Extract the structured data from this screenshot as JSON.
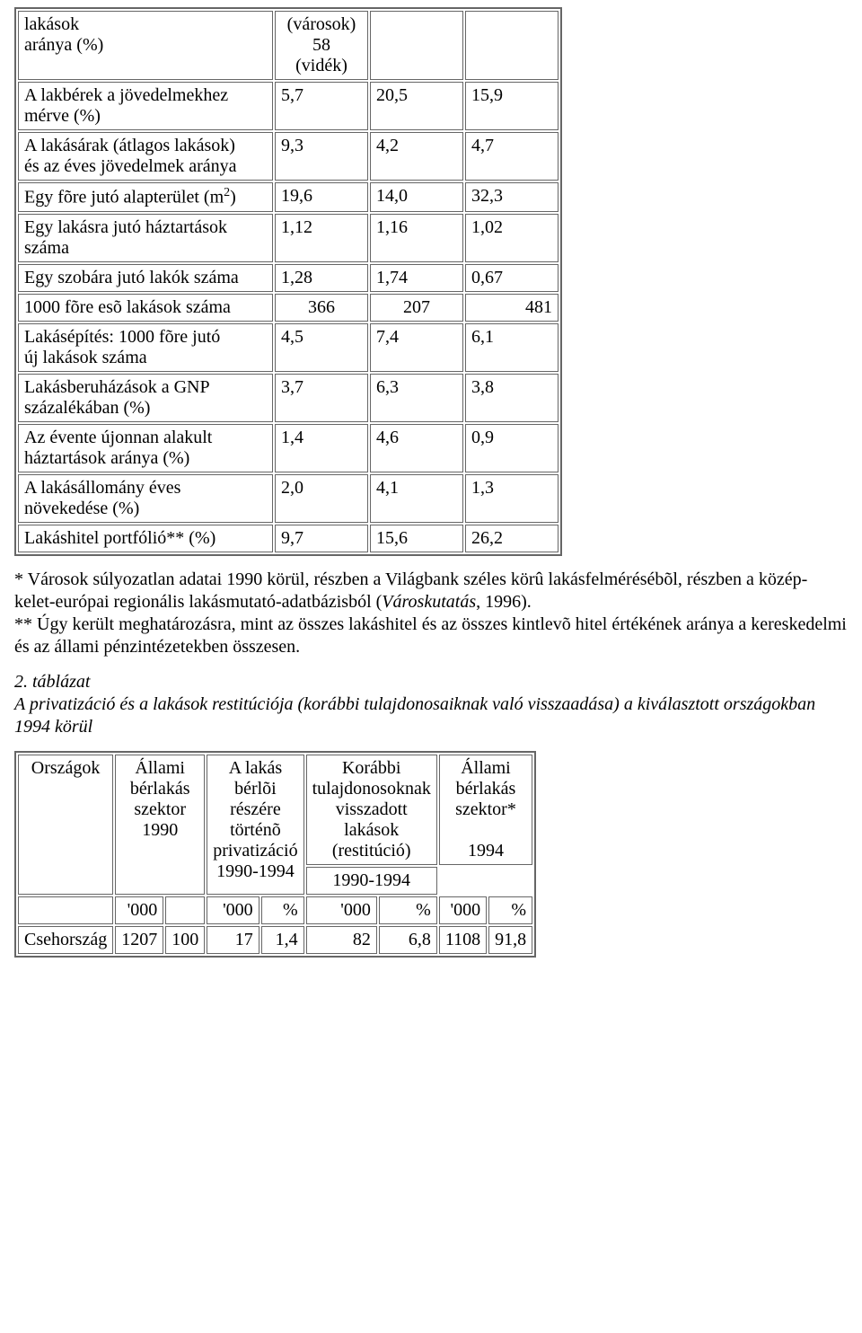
{
  "table1": {
    "rows": [
      {
        "label": "lakások<br>aránya (%)",
        "c1": "(városok)<br>58<br>(vidék)",
        "c2": "",
        "c3": "",
        "c1_align": "center"
      },
      {
        "label": "A lakbérek a jövedelmekhez<br>mérve (%)",
        "c1": "5,7",
        "c2": "20,5",
        "c3": "15,9"
      },
      {
        "label": "A lakásárak (átlagos lakások)<br>és az éves jövedelmek aránya",
        "c1": "9,3",
        "c2": "4,2",
        "c3": "4,7"
      },
      {
        "label": "Egy fõre jutó alapterület (m<sup>2</sup>)",
        "c1": "19,6",
        "c2": "14,0",
        "c3": "32,3"
      },
      {
        "label": "Egy lakásra jutó háztartások<br>száma",
        "c1": "1,12",
        "c2": "1,16",
        "c3": "1,02"
      },
      {
        "label": "Egy szobára jutó lakók száma",
        "c1": "1,28",
        "c2": "1,74",
        "c3": "0,67"
      },
      {
        "label": "1000 fõre esõ lakások száma",
        "c1": "366",
        "c2": "207",
        "c3": "481",
        "c1_align": "center",
        "c2_align": "center",
        "c3_align": "right"
      },
      {
        "label": "Lakásépítés: 1000 fõre jutó<br>új lakások száma",
        "c1": "4,5",
        "c2": "7,4",
        "c3": "6,1"
      },
      {
        "label": "Lakásberuházások a GNP<br>százalékában (%)",
        "c1": "3,7",
        "c2": "6,3",
        "c3": "3,8"
      },
      {
        "label": "Az évente újonnan alakult<br>háztartások aránya (%)",
        "c1": "1,4",
        "c2": "4,6",
        "c3": "0,9"
      },
      {
        "label": "A lakásállomány éves<br>növekedése (%)",
        "c1": "2,0",
        "c2": "4,1",
        "c3": "1,3"
      },
      {
        "label": "Lakáshitel portfólió** (%)",
        "c1": "9,7",
        "c2": "15,6",
        "c3": "26,2"
      }
    ]
  },
  "notes": {
    "star1_pre": "* Városok súlyozatlan adatai 1990 körül, részben a Világbank széles körû lakásfelmérésébõl, részben a közép-kelet-európai regionális lakásmutató-adatbázisból (",
    "star1_ital": "Városkutatás",
    "star1_post": ", 1996).",
    "star2": "** Úgy került meghatározásra, mint az összes lakáshitel és az összes kintlevõ hitel értékének aránya a kereskedelmi és az állami pénzintézetekben összesen."
  },
  "caption2": {
    "num": "2. táblázat",
    "title": "A privatizáció és a lakások restitúciója (korábbi tulajdonosaiknak való visszaadása) a kiválasztott országokban 1994 körül"
  },
  "table2": {
    "head": {
      "h0": "Országok",
      "h1": "Állami<br>bérlakás<br>szektor<br>1990",
      "h2": "A lakás<br>bérlõi<br>részére<br>történõ<br>privatizáció<br>1990-1994",
      "h3": "Korábbi<br>tulajdonosoknak<br>visszadott<br>lakások<br>(restitúció)",
      "h4": "Állami<br>bérlakás<br>szektor*",
      "h3b": "1990-1994",
      "h4b": "1994",
      "unit000": "'000",
      "unitpct": "%"
    },
    "row1": {
      "country": "Csehország",
      "c1a": "1207",
      "c1b": "100",
      "c2a": "17",
      "c2b": "1,4",
      "c3a": "82",
      "c3b": "6,8",
      "c4a": "1108",
      "c4b": "91,8"
    }
  }
}
